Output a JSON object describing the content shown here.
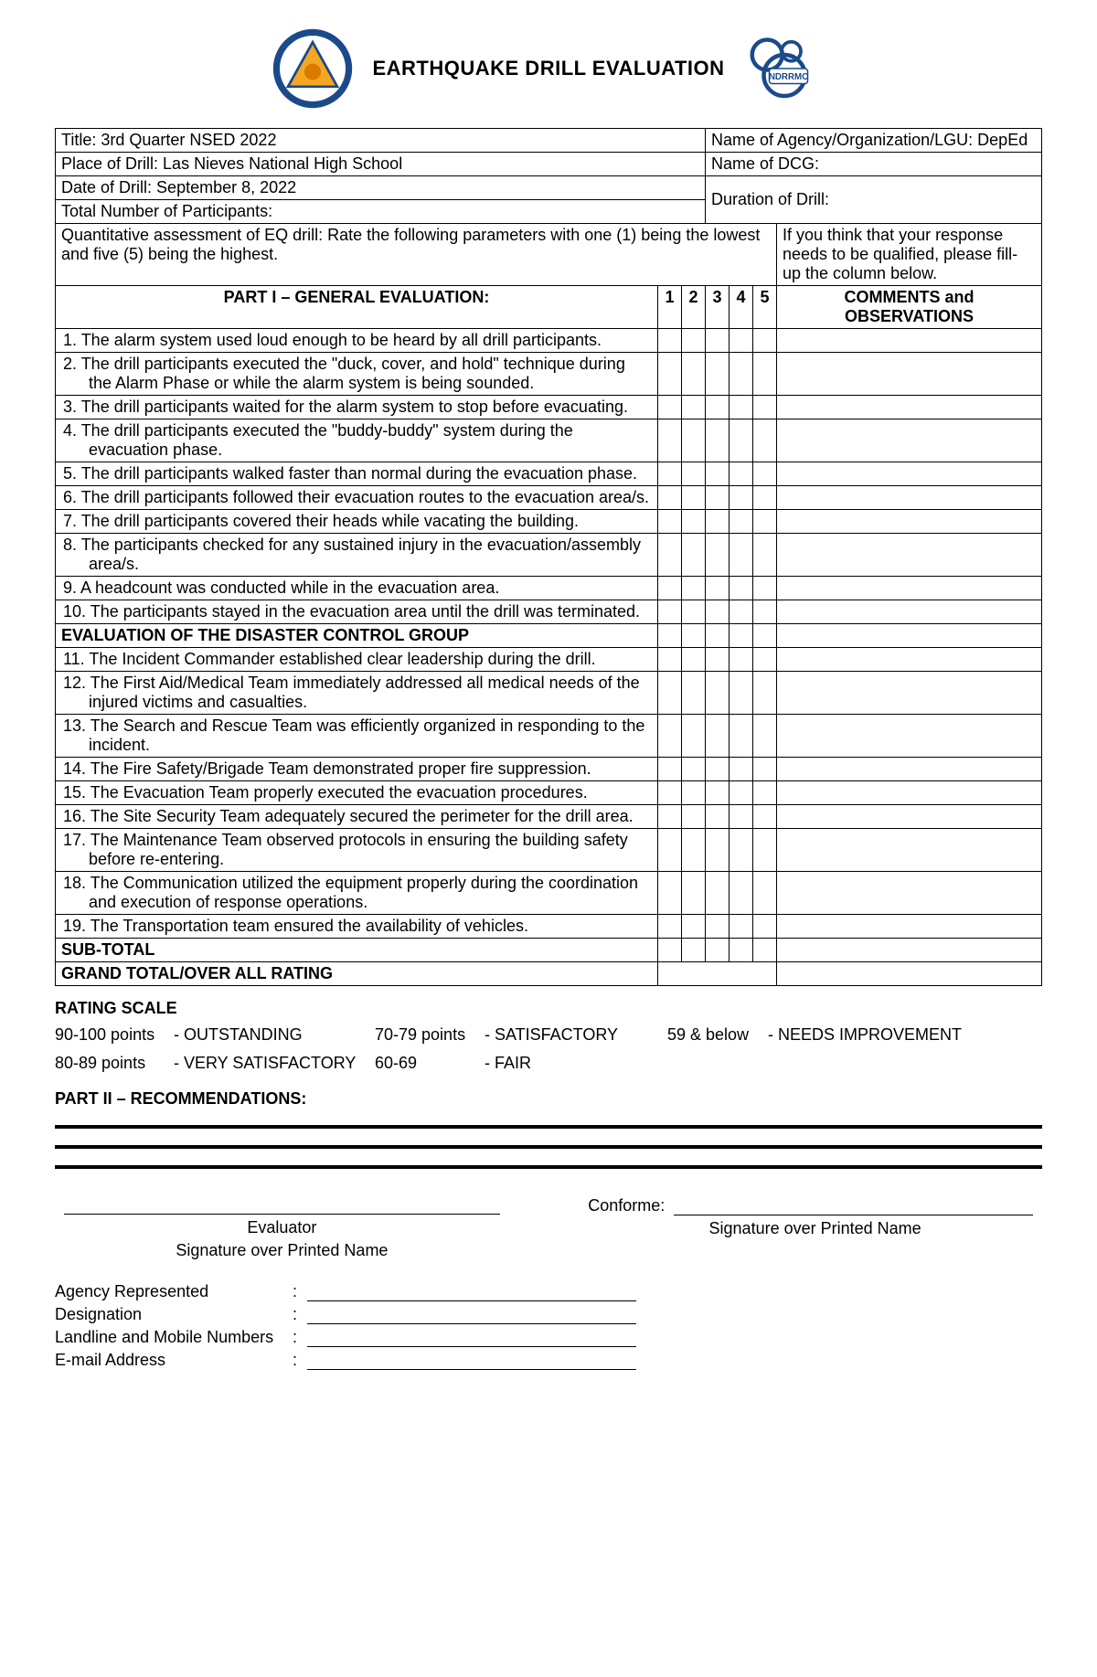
{
  "header": {
    "title": "EARTHQUAKE DRILL EVALUATION"
  },
  "info": {
    "title_label": "Title:",
    "title_value": "3rd Quarter NSED 2022",
    "agency_label": "Name of Agency/Organization/LGU:",
    "agency_value": "DepEd",
    "place_label": "Place of Drill:",
    "place_value": "Las Nieves National High School",
    "dcg_label": "Name of DCG:",
    "dcg_value": "",
    "date_label": "Date of Drill:",
    "date_value": "September 8, 2022",
    "duration_label": "Duration of Drill:",
    "duration_value": "",
    "participants_label": "Total Number of Participants:",
    "participants_value": "",
    "instruction_left": "Quantitative assessment of EQ drill: Rate the following parameters with one (1) being the lowest and five (5) being the highest.",
    "instruction_right": "If you think that your response needs to be qualified, please fill-up the column below."
  },
  "columns": {
    "part1_header": "PART I – GENERAL EVALUATION:",
    "r1": "1",
    "r2": "2",
    "r3": "3",
    "r4": "4",
    "r5": "5",
    "comments_header_l1": "COMMENTS and",
    "comments_header_l2": "OBSERVATIONS"
  },
  "items_general": [
    "1.   The alarm system used loud enough to be heard by all drill participants.",
    "2.   The drill participants executed the \"duck, cover, and hold\" technique during the Alarm Phase or while the alarm system is being sounded.",
    "3.   The drill participants waited for the alarm system to stop before evacuating.",
    "4.   The drill participants executed the \"buddy-buddy\" system during the evacuation phase.",
    "5.   The drill participants walked faster than normal during the evacuation phase.",
    "6.   The drill participants followed their evacuation routes to the evacuation area/s.",
    "7.   The drill participants covered their heads while vacating the building.",
    "8.   The participants checked for any sustained injury in the evacuation/assembly area/s.",
    "9.   A headcount was conducted while in the evacuation area.",
    "10. The participants stayed in the evacuation area until the drill was terminated."
  ],
  "dcg_section_title": "EVALUATION OF THE DISASTER CONTROL GROUP",
  "items_dcg": [
    "11. The Incident Commander established clear leadership during the drill.",
    "12. The First Aid/Medical Team immediately addressed all medical needs of the injured victims and casualties.",
    "13. The Search and Rescue Team was efficiently organized in responding to the incident.",
    "14. The Fire Safety/Brigade Team demonstrated proper fire suppression.",
    "15. The Evacuation Team properly executed the evacuation procedures.",
    "16. The Site Security Team adequately secured the perimeter for the drill area.",
    "17. The Maintenance Team observed protocols in ensuring the building safety before re-entering.",
    "18. The Communication utilized the equipment properly during the coordination and execution of response operations.",
    "19. The Transportation team ensured the availability of vehicles."
  ],
  "totals": {
    "subtotal": "SUB-TOTAL",
    "grand": "GRAND TOTAL/OVER ALL RATING"
  },
  "rating_scale": {
    "title": "RATING SCALE",
    "rows": [
      [
        "90-100 points",
        "-  OUTSTANDING",
        "70-79 points",
        "-  SATISFACTORY",
        "59 & below",
        "-  NEEDS IMPROVEMENT"
      ],
      [
        "80-89 points",
        "-  VERY SATISFACTORY",
        "60-69",
        "-  FAIR",
        "",
        ""
      ]
    ]
  },
  "part2_title": "PART II – RECOMMENDATIONS:",
  "signatures": {
    "evaluator": "Evaluator",
    "sig_over_name": "Signature over Printed Name",
    "conforme": "Conforme:"
  },
  "agency_fields": [
    "Agency Represented",
    "Designation",
    "Landline and Mobile Numbers",
    "E-mail Address"
  ]
}
